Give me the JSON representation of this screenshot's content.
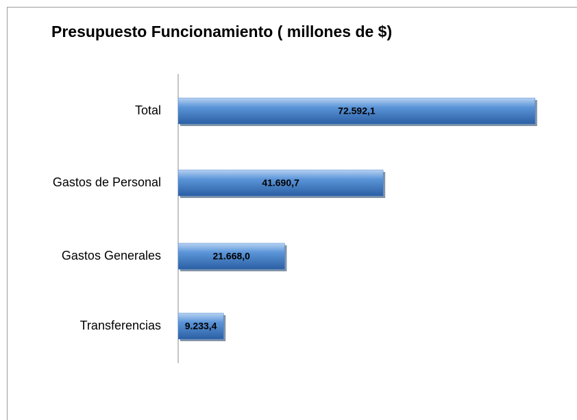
{
  "chart_data": {
    "type": "bar",
    "orientation": "horizontal",
    "title": "Presupuesto Funcionamiento ( millones de $)",
    "categories": [
      "Total",
      "Gastos de Personal",
      "Gastos Generales",
      "Transferencias"
    ],
    "values": [
      72592.1,
      41690.7,
      21668.0,
      9233.4
    ],
    "value_labels": [
      "72.592,1",
      "41.690,7",
      "21.668,0",
      "9.233,4"
    ],
    "color": "#4a86d0",
    "xlim": [
      0,
      80000
    ]
  }
}
